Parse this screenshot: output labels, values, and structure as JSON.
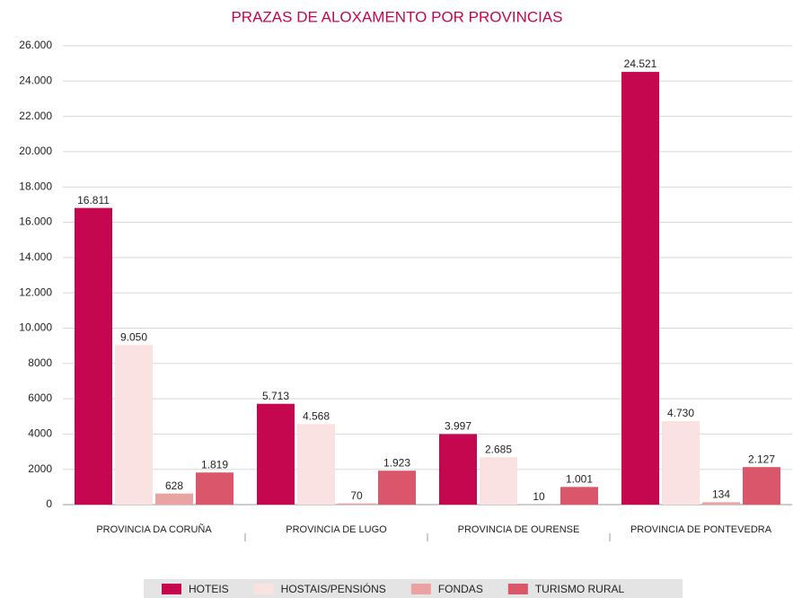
{
  "chart_data": {
    "type": "bar",
    "title": "PRAZAS DE ALOXAMENTO POR PROVINCIAS",
    "categories": [
      "PROVINCIA DA CORUÑA",
      "PROVINCIA DE LUGO",
      "PROVINCIA DE OURENSE",
      "PROVINCIA DE PONTEVEDRA"
    ],
    "series": [
      {
        "name": "HOTEIS",
        "color": "#c4074f",
        "values": [
          16811,
          5713,
          3997,
          24521
        ],
        "value_labels": [
          "16.811",
          "5.713",
          "3.997",
          "24.521"
        ]
      },
      {
        "name": "HOSTAIS/PENSIÓNS",
        "color": "#fbe2e2",
        "values": [
          9050,
          4568,
          2685,
          4730
        ],
        "value_labels": [
          "9.050",
          "4.568",
          "2.685",
          "4.730"
        ]
      },
      {
        "name": "FONDAS",
        "color": "#e9a3a3",
        "values": [
          628,
          70,
          10,
          134
        ]
      },
      {
        "name": "TURISMO RURAL",
        "color": "#d9566b",
        "values": [
          1819,
          1923,
          1001,
          2127
        ],
        "value_labels": [
          "1.819",
          "1.923",
          "1.001",
          "2.127"
        ]
      }
    ],
    "ylim": [
      0,
      26000
    ],
    "yticks": [
      0,
      2000,
      4000,
      6000,
      8000,
      {
        "value": 10000,
        "label": "10.000"
      },
      {
        "value": 12000,
        "label": "12.000"
      },
      {
        "value": 14000,
        "label": "14.000"
      },
      {
        "value": 16000,
        "label": "16.000"
      },
      {
        "value": 18000,
        "label": "18.000"
      },
      {
        "value": 20000,
        "label": "20.000"
      },
      {
        "value": 22000,
        "label": "22.000"
      },
      {
        "value": 24000,
        "label": "24.000"
      },
      {
        "value": 26000,
        "label": "26.000"
      }
    ],
    "grid": true,
    "legend": "bottom"
  }
}
